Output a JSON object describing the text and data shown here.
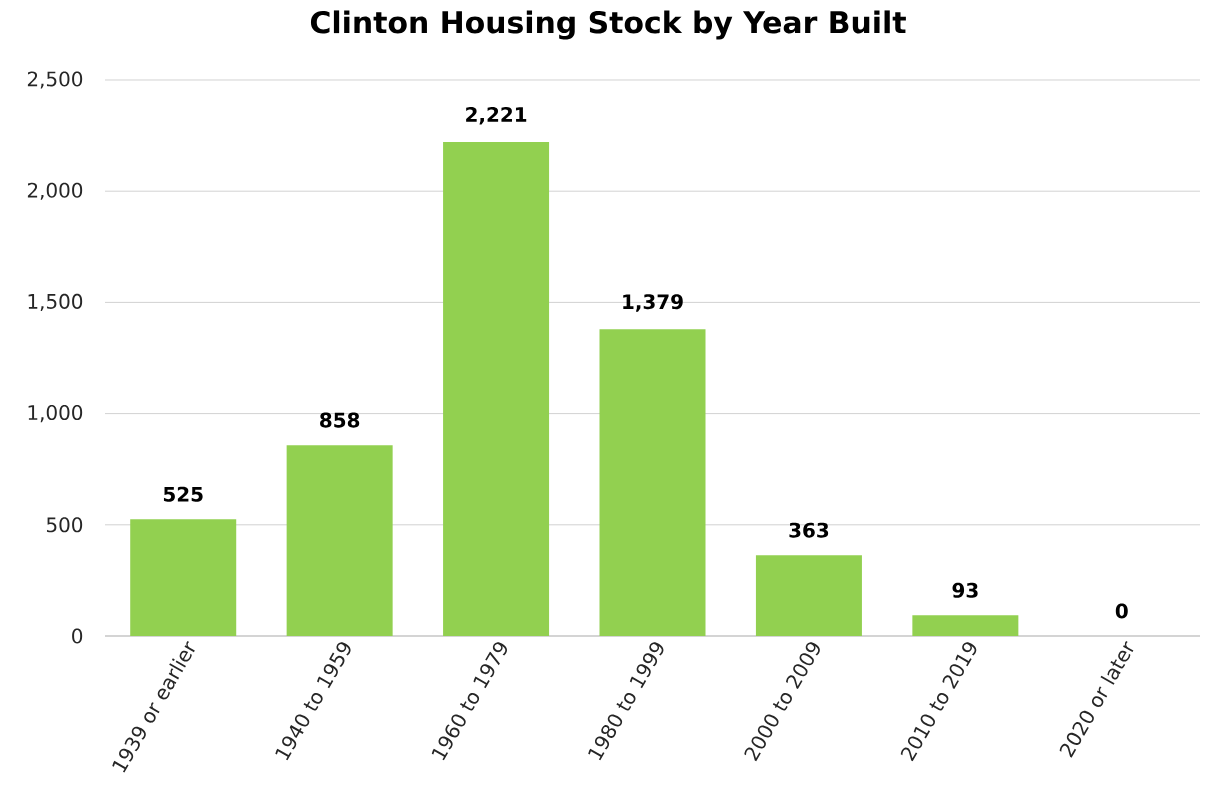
{
  "chart_data": {
    "type": "bar",
    "title": "Clinton Housing Stock by Year Built",
    "categories": [
      "1939 or earlier",
      "1940 to 1959",
      "1960 to 1979",
      "1980 to 1999",
      "2000 to 2009",
      "2010 to 2019",
      "2020 or later"
    ],
    "values": [
      525,
      858,
      2221,
      1379,
      363,
      93,
      0
    ],
    "value_labels": [
      "525",
      "858",
      "2,221",
      "1,379",
      "363",
      "93",
      "0"
    ],
    "color": "#92d050",
    "ylim": [
      0,
      2500
    ],
    "yticks": [
      0,
      500,
      {
        "value": 1000,
        "label": "1,000"
      },
      {
        "value": 1500,
        "label": "1,500"
      },
      {
        "value": 2000,
        "label": "2,000"
      },
      {
        "value": 2500,
        "label": "2,500"
      }
    ],
    "grid": "y"
  }
}
